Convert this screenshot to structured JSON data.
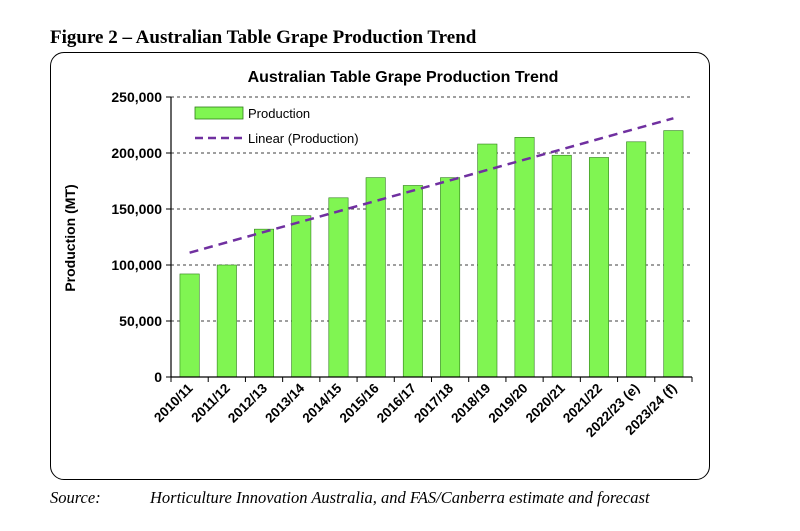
{
  "figure_caption": "Figure 2 – Australian Table Grape Production Trend",
  "source": {
    "label": "Source:",
    "text": "Horticulture Innovation Australia, and FAS/Canberra estimate and forecast"
  },
  "colors": {
    "bar_fill": "#80f552",
    "bar_stroke": "#2e7d1a",
    "trend": "#7030a0",
    "grid": "#000000"
  },
  "chart_data": {
    "type": "bar",
    "title": "Australian Table Grape Production Trend",
    "xlabel": "",
    "ylabel": "Production (MT)",
    "ylim": [
      0,
      250000
    ],
    "yticks": [
      0,
      50000,
      100000,
      150000,
      200000,
      250000
    ],
    "ytick_labels": [
      "0",
      "50,000",
      "100,000",
      "150,000",
      "200,000",
      "250,000"
    ],
    "grid": "horizontal dashed",
    "legend_position": "top-left",
    "categories": [
      "2010/11",
      "2011/12",
      "2012/13",
      "2013/14",
      "2014/15",
      "2015/16",
      "2016/17",
      "2017/18",
      "2018/19",
      "2019/20",
      "2020/21",
      "2021/22",
      "2022/23 (e)",
      "2023/24 (f)"
    ],
    "series": [
      {
        "name": "Production",
        "values": [
          92000,
          100000,
          132000,
          144000,
          160000,
          178000,
          171000,
          178000,
          208000,
          214000,
          198000,
          196000,
          210000,
          220000
        ]
      }
    ],
    "trendline": {
      "name": "Linear (Production)",
      "start": 111000,
      "end": 231000
    }
  }
}
